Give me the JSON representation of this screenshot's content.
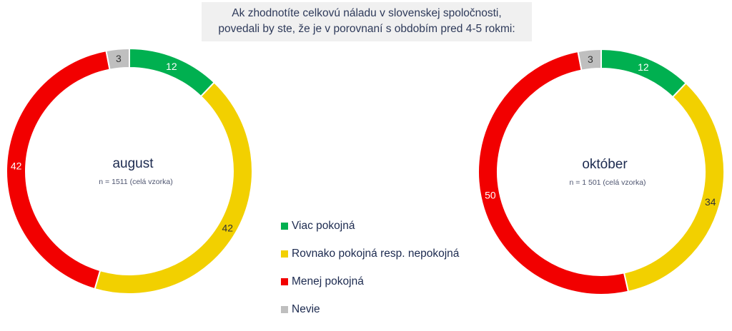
{
  "title": {
    "line1": "Ak zhodnotíte celkovú náladu v slovenskej spoločnosti,",
    "line2": "povedali by ste, že je v porovnaní s obdobím pred 4-5 rokmi:"
  },
  "colors": {
    "Viac pokojná": "#00b050",
    "Rovnako pokojná resp. nepokojná": "#f2d000",
    "Menej pokojná": "#f20000",
    "Nevie": "#bfbfbf"
  },
  "legend": [
    {
      "label": "Viac pokojná"
    },
    {
      "label": "Rovnako pokojná resp. nepokojná"
    },
    {
      "label": "Menej pokojná"
    },
    {
      "label": "Nevie"
    }
  ],
  "chart_data": [
    {
      "type": "pie",
      "style": "donut",
      "center_title": "august",
      "center_subtitle": "n = 1511 (celá vzorka)",
      "categories": [
        "Viac pokojná",
        "Rovnako pokojná resp. nepokojná",
        "Menej pokojná",
        "Nevie"
      ],
      "values": [
        12,
        42,
        42,
        3
      ],
      "data_labels": [
        "12",
        "42",
        "42",
        "3"
      ],
      "legend_position": "center-bottom"
    },
    {
      "type": "pie",
      "style": "donut",
      "center_title": "október",
      "center_subtitle": "n = 1 501 (celá vzorka)",
      "categories": [
        "Viac pokojná",
        "Rovnako pokojná resp. nepokojná",
        "Menej pokojná",
        "Nevie"
      ],
      "values": [
        12,
        34,
        50,
        3
      ],
      "data_labels": [
        "12",
        "34",
        "50",
        "3"
      ],
      "legend_position": "center-bottom"
    }
  ]
}
